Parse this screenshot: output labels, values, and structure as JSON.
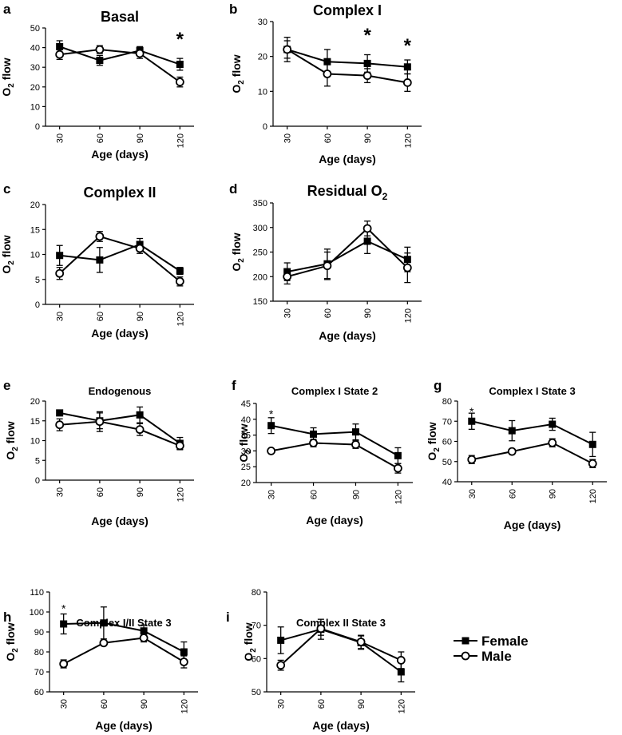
{
  "legend": [
    {
      "name": "Female",
      "marker": "square"
    },
    {
      "name": "Male",
      "marker": "circle"
    }
  ],
  "chart_data": [
    {
      "type": "line",
      "panel": "a",
      "title": "Basal",
      "xlabel": "Age (days)",
      "ylabel": "O2 flow",
      "categories": [
        "30",
        "60",
        "90",
        "120"
      ],
      "ylim": [
        0,
        50
      ],
      "yticks": [
        0,
        10,
        20,
        30,
        40,
        50
      ],
      "series": [
        {
          "name": "Female",
          "values": [
            40.5,
            33.5,
            38.5,
            31.5
          ],
          "errors": [
            3,
            2.5,
            2,
            3
          ]
        },
        {
          "name": "Male",
          "values": [
            36.5,
            39,
            37,
            22.5
          ],
          "errors": [
            2.5,
            2,
            2.5,
            2.5
          ]
        }
      ],
      "annotations": [
        {
          "text": "*",
          "category": "120",
          "y": 46
        }
      ]
    },
    {
      "type": "line",
      "panel": "b",
      "title": "Complex I",
      "xlabel": "Age (days)",
      "ylabel": "O2 flow",
      "categories": [
        "30",
        "60",
        "90",
        "120"
      ],
      "ylim": [
        0,
        30
      ],
      "yticks": [
        0,
        10,
        20,
        30
      ],
      "series": [
        {
          "name": "Female",
          "values": [
            22,
            18.5,
            18,
            17
          ],
          "errors": [
            3.5,
            3.5,
            2.5,
            2
          ]
        },
        {
          "name": "Male",
          "values": [
            22,
            15,
            14.5,
            12.5
          ],
          "errors": [
            2.5,
            3.5,
            2,
            2.5
          ]
        }
      ],
      "annotations": [
        {
          "text": "*",
          "category": "90",
          "y": 27
        },
        {
          "text": "*",
          "category": "120",
          "y": 24
        }
      ]
    },
    {
      "type": "line",
      "panel": "c",
      "title": "Complex II",
      "xlabel": "Age (days)",
      "ylabel": "O2 flow",
      "categories": [
        "30",
        "60",
        "90",
        "120"
      ],
      "ylim": [
        0,
        20
      ],
      "yticks": [
        0,
        5,
        10,
        15,
        20
      ],
      "series": [
        {
          "name": "Female",
          "values": [
            9.8,
            8.9,
            12,
            6.7
          ],
          "errors": [
            2,
            2.5,
            1.2,
            0.7
          ]
        },
        {
          "name": "Male",
          "values": [
            6.2,
            13.6,
            11.2,
            4.6
          ],
          "errors": [
            1.2,
            1,
            1,
            0.9
          ]
        }
      ],
      "annotations": []
    },
    {
      "type": "line",
      "panel": "d",
      "title": "Residual O",
      "title_sub": "2",
      "xlabel": "Age (days)",
      "ylabel": "O2 flow",
      "categories": [
        "30",
        "60",
        "90",
        "120"
      ],
      "ylim": [
        150,
        350
      ],
      "yticks": [
        150,
        200,
        250,
        300,
        350
      ],
      "series": [
        {
          "name": "Female",
          "values": [
            210,
            226,
            272,
            235
          ],
          "errors": [
            18,
            30,
            25,
            25
          ]
        },
        {
          "name": "Male",
          "values": [
            200,
            222,
            298,
            218
          ],
          "errors": [
            15,
            28,
            15,
            30
          ]
        }
      ],
      "annotations": []
    },
    {
      "type": "line",
      "panel": "e",
      "title": "Endogenous",
      "xlabel": "Age (days)",
      "ylabel": "O2 flow",
      "categories": [
        "30",
        "60",
        "90",
        "120"
      ],
      "ylim": [
        0,
        20
      ],
      "yticks": [
        0,
        5,
        10,
        15,
        20
      ],
      "series": [
        {
          "name": "Female",
          "values": [
            17,
            15,
            16.5,
            9.3
          ],
          "errors": [
            0.3,
            2,
            2,
            1.5
          ]
        },
        {
          "name": "Male",
          "values": [
            14,
            14.8,
            12.8,
            8.7
          ],
          "errors": [
            1.5,
            2.5,
            1.5,
            1
          ]
        }
      ],
      "annotations": []
    },
    {
      "type": "line",
      "panel": "f",
      "title": "Complex I State 2",
      "xlabel": "Age (days)",
      "ylabel": "O2 flow",
      "categories": [
        "30",
        "60",
        "90",
        "120"
      ],
      "ylim": [
        20,
        45
      ],
      "yticks": [
        20,
        25,
        30,
        35,
        40,
        45
      ],
      "series": [
        {
          "name": "Female",
          "values": [
            38,
            35.3,
            36,
            28.5
          ],
          "errors": [
            2.5,
            2,
            2.5,
            2.5
          ]
        },
        {
          "name": "Male",
          "values": [
            30,
            32.5,
            32,
            24.5
          ],
          "errors": [
            0.3,
            1.2,
            1.2,
            1.5
          ]
        }
      ],
      "annotations": [
        {
          "text": "*",
          "category": "30",
          "y": 42.5
        }
      ]
    },
    {
      "type": "line",
      "panel": "g",
      "title": "Complex I State 3",
      "xlabel": "Age (days)",
      "ylabel": "O2 flow",
      "categories": [
        "30",
        "60",
        "90",
        "120"
      ],
      "ylim": [
        40,
        80
      ],
      "yticks": [
        40,
        50,
        60,
        70,
        80
      ],
      "series": [
        {
          "name": "Female",
          "values": [
            70,
            65.3,
            68.5,
            58.5
          ],
          "errors": [
            4,
            5,
            3,
            6
          ]
        },
        {
          "name": "Male",
          "values": [
            51,
            55,
            59.3,
            49
          ],
          "errors": [
            2,
            0.5,
            2,
            2
          ]
        }
      ],
      "annotations": [
        {
          "text": "*",
          "category": "30",
          "y": 76
        }
      ]
    },
    {
      "type": "line",
      "panel": "h",
      "title": "Complex I/II State 3",
      "xlabel": "Age (days)",
      "ylabel": "O2 flow",
      "categories": [
        "30",
        "60",
        "90",
        "120"
      ],
      "ylim": [
        60,
        110
      ],
      "yticks": [
        60,
        70,
        80,
        90,
        100,
        110
      ],
      "series": [
        {
          "name": "Female",
          "values": [
            94,
            94.5,
            90.5,
            80
          ],
          "errors": [
            5,
            8,
            3,
            5
          ]
        },
        {
          "name": "Male",
          "values": [
            74,
            84.5,
            87,
            75
          ],
          "errors": [
            2,
            1,
            2,
            3
          ]
        }
      ],
      "annotations": [
        {
          "text": "*",
          "category": "30",
          "y": 103
        }
      ]
    },
    {
      "type": "line",
      "panel": "i",
      "title": "Complex II State 3",
      "xlabel": "Age (days)",
      "ylabel": "O2 flow",
      "categories": [
        "30",
        "60",
        "90",
        "120"
      ],
      "ylim": [
        50,
        80
      ],
      "yticks": [
        50,
        60,
        70,
        80
      ],
      "series": [
        {
          "name": "Female",
          "values": [
            65.5,
            68.8,
            64.8,
            56
          ],
          "errors": [
            4,
            3,
            2,
            3
          ]
        },
        {
          "name": "Male",
          "values": [
            58,
            69,
            65,
            59.5
          ],
          "errors": [
            1.5,
            2,
            2,
            2.5
          ]
        }
      ],
      "annotations": []
    }
  ]
}
